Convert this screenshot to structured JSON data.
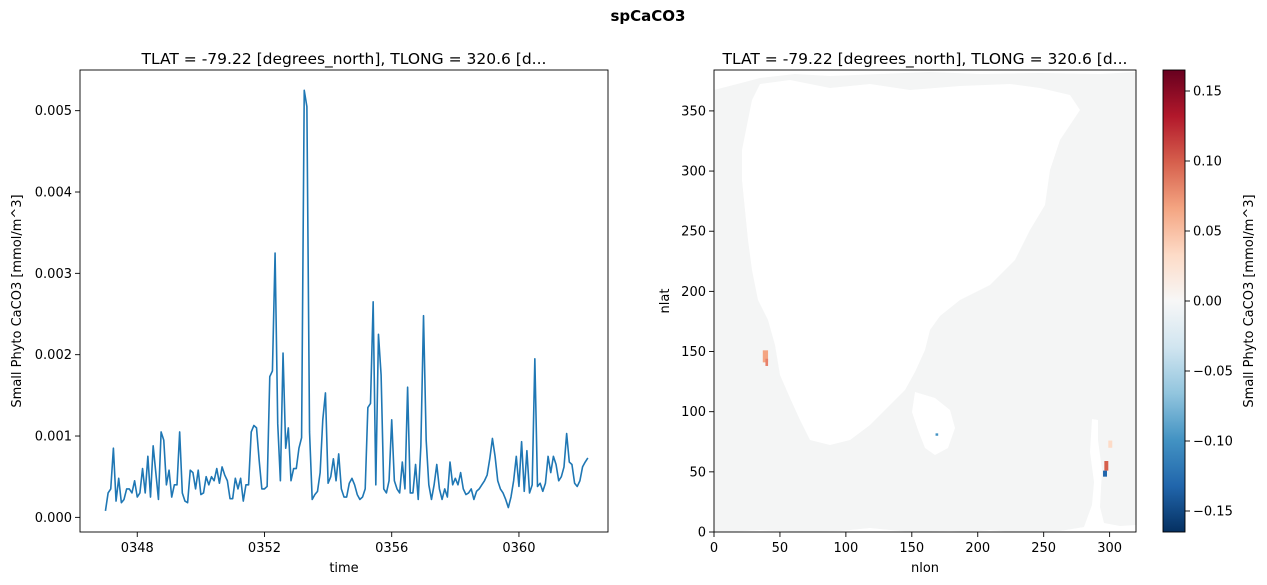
{
  "figure": {
    "suptitle": "spCaCO3"
  },
  "chart_data": [
    {
      "type": "line",
      "title": "TLAT = -79.22 [degrees_north], TLONG = 320.6 [d...",
      "xlabel": "time",
      "ylabel": "Small Phyto CaCO3 [mmol/m^3]",
      "xlim": [
        346.2,
        362.8
      ],
      "ylim": [
        -0.00018,
        0.0055
      ],
      "x_ticks": [
        {
          "value": 348,
          "label": "0348"
        },
        {
          "value": 352,
          "label": "0352"
        },
        {
          "value": 356,
          "label": "0356"
        },
        {
          "value": 360,
          "label": "0360"
        }
      ],
      "y_ticks": [
        {
          "value": 0.0,
          "label": "0.000"
        },
        {
          "value": 0.001,
          "label": "0.001"
        },
        {
          "value": 0.002,
          "label": "0.002"
        },
        {
          "value": 0.003,
          "label": "0.003"
        },
        {
          "value": 0.004,
          "label": "0.004"
        },
        {
          "value": 0.005,
          "label": "0.005"
        }
      ],
      "line_color": "#1f77b4",
      "grid": false,
      "series": [
        {
          "x_start": 347.0,
          "x_step": 0.083333,
          "values": [
            8e-05,
            0.0003,
            0.00035,
            0.00085,
            0.0002,
            0.00048,
            0.00018,
            0.00022,
            0.00035,
            0.00035,
            0.0003,
            0.00045,
            0.00025,
            0.0003,
            0.0006,
            0.0003,
            0.00075,
            0.00025,
            0.00088,
            0.00055,
            0.00022,
            0.00105,
            0.00095,
            0.0004,
            0.00058,
            0.00025,
            0.0004,
            0.0004,
            0.00105,
            0.0003,
            0.0002,
            0.00018,
            0.00058,
            0.00055,
            0.00035,
            0.00058,
            0.00028,
            0.0003,
            0.0005,
            0.0004,
            0.0005,
            0.00045,
            0.0006,
            0.00042,
            0.00062,
            0.00052,
            0.00045,
            0.00023,
            0.00023,
            0.00048,
            0.00035,
            0.00048,
            0.0002,
            0.0004,
            0.0004,
            0.00105,
            0.00113,
            0.0011,
            0.0007,
            0.00035,
            0.00035,
            0.00038,
            0.00173,
            0.0018,
            0.00325,
            0.00115,
            0.00045,
            0.00202,
            0.00085,
            0.0011,
            0.00045,
            0.0006,
            0.0006,
            0.00085,
            0.00098,
            0.00525,
            0.00505,
            0.00105,
            0.00022,
            0.00028,
            0.00032,
            0.00055,
            0.0012,
            0.00153,
            0.00042,
            0.0005,
            0.00072,
            0.00045,
            0.00078,
            0.00035,
            0.00025,
            0.00025,
            0.00042,
            0.00048,
            0.0004,
            0.00028,
            0.00022,
            0.00025,
            0.00035,
            0.00135,
            0.0014,
            0.00265,
            0.0004,
            0.00225,
            0.00175,
            0.00035,
            0.0003,
            0.00045,
            0.0012,
            0.00045,
            0.00035,
            0.0003,
            0.00068,
            0.00035,
            0.0016,
            0.0003,
            0.0003,
            0.00065,
            0.00022,
            0.00088,
            0.00248,
            0.00095,
            0.0004,
            0.00022,
            0.0004,
            0.00065,
            0.00035,
            0.00022,
            0.00035,
            0.00025,
            0.00068,
            0.0004,
            0.00048,
            0.0004,
            0.00055,
            0.00035,
            0.00028,
            0.0003,
            0.00035,
            0.00022,
            0.00032,
            0.00035,
            0.0004,
            0.00045,
            0.00052,
            0.00072,
            0.00097,
            0.00075,
            0.00045,
            0.00035,
            0.0003,
            0.00022,
            0.00012,
            0.00025,
            0.00045,
            0.00075,
            0.00038,
            0.00093,
            0.00032,
            0.00082,
            0.0003,
            0.0004,
            0.00195,
            0.00038,
            0.00042,
            0.00032,
            0.00042,
            0.00075,
            0.00055,
            0.00075,
            0.00065,
            0.00045,
            0.0005,
            0.00062,
            0.00103,
            0.00068,
            0.00065,
            0.00042,
            0.00038,
            0.00045,
            0.00062,
            0.00068,
            0.00073
          ]
        }
      ]
    },
    {
      "type": "heatmap",
      "title": "TLAT = -79.22 [degrees_north], TLONG = 320.6 [d...",
      "xlabel": "nlon",
      "ylabel": "nlat",
      "xlim": [
        0,
        320
      ],
      "ylim": [
        0,
        384
      ],
      "x_ticks": [
        {
          "value": 0,
          "label": "0"
        },
        {
          "value": 50,
          "label": "50"
        },
        {
          "value": 100,
          "label": "100"
        },
        {
          "value": 150,
          "label": "150"
        },
        {
          "value": 200,
          "label": "200"
        },
        {
          "value": 250,
          "label": "250"
        },
        {
          "value": 300,
          "label": "300"
        }
      ],
      "y_ticks": [
        {
          "value": 0,
          "label": "0"
        },
        {
          "value": 50,
          "label": "50"
        },
        {
          "value": 100,
          "label": "100"
        },
        {
          "value": 150,
          "label": "150"
        },
        {
          "value": 200,
          "label": "200"
        },
        {
          "value": 250,
          "label": "250"
        },
        {
          "value": 300,
          "label": "300"
        },
        {
          "value": 350,
          "label": "350"
        }
      ],
      "colormap": "RdBu_r",
      "ocean_color": "#f4f5f5",
      "colorbar": {
        "label": "Small Phyto CaCO3 [mmol/m^3]",
        "vmin": -0.165,
        "vmax": 0.165,
        "ticks": [
          {
            "value": 0.15,
            "label": "0.15"
          },
          {
            "value": 0.1,
            "label": "0.10"
          },
          {
            "value": 0.05,
            "label": "0.05"
          },
          {
            "value": 0.0,
            "label": "0.00"
          },
          {
            "value": -0.05,
            "label": "−0.05"
          },
          {
            "value": -0.1,
            "label": "−0.10"
          },
          {
            "value": -0.15,
            "label": "−0.15"
          }
        ],
        "stops": [
          "#053061",
          "#2166ac",
          "#4393c3",
          "#92c5de",
          "#d1e5f0",
          "#f7f7f7",
          "#fddbc7",
          "#f4a582",
          "#d6604d",
          "#b2182b",
          "#67001f"
        ]
      },
      "highlights": [
        {
          "nlon": 37,
          "nlat": 141,
          "w": 4,
          "h": 10,
          "color": "#f4a582"
        },
        {
          "nlon": 39,
          "nlat": 138,
          "w": 2,
          "h": 6,
          "color": "#e7806a"
        },
        {
          "nlon": 296,
          "nlat": 51,
          "w": 3,
          "h": 8,
          "color": "#d6604d"
        },
        {
          "nlon": 295,
          "nlat": 46,
          "w": 3,
          "h": 5,
          "color": "#2166ac"
        },
        {
          "nlon": 299,
          "nlat": 70,
          "w": 3,
          "h": 6,
          "color": "#fddbc7"
        },
        {
          "nlon": 168,
          "nlat": 80,
          "w": 2,
          "h": 2,
          "color": "#4393c3"
        }
      ]
    }
  ]
}
